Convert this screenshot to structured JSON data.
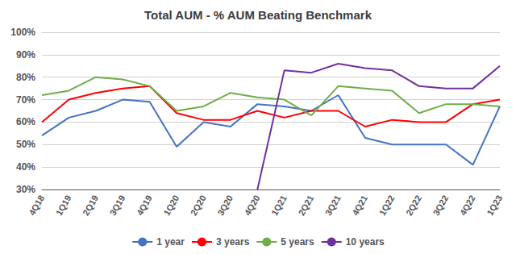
{
  "chart_data": {
    "type": "line",
    "title": "Total AUM - % AUM Beating Benchmark",
    "categories": [
      "4Q18",
      "1Q19",
      "2Q19",
      "3Q19",
      "4Q19",
      "1Q20",
      "2Q20",
      "3Q20",
      "4Q20",
      "1Q21",
      "2Q21",
      "3Q21",
      "4Q21",
      "1Q22",
      "2Q22",
      "3Q22",
      "4Q22",
      "1Q23"
    ],
    "series": [
      {
        "name": "1 year",
        "color": "#4472C4",
        "values": [
          54,
          62,
          65,
          70,
          69,
          49,
          60,
          58,
          68,
          67,
          65,
          72,
          53,
          50,
          50,
          50,
          41,
          67
        ]
      },
      {
        "name": "3 years",
        "color": "#FF0000",
        "values": [
          60,
          70,
          73,
          75,
          76,
          64,
          61,
          61,
          65,
          62,
          65,
          65,
          58,
          61,
          60,
          60,
          68,
          70
        ]
      },
      {
        "name": "5 years",
        "color": "#70AD47",
        "values": [
          72,
          74,
          80,
          79,
          76,
          65,
          67,
          73,
          71,
          70,
          63,
          76,
          75,
          74,
          64,
          68,
          68,
          67
        ]
      },
      {
        "name": "10 years",
        "color": "#7030A0",
        "values": [
          null,
          null,
          null,
          null,
          null,
          null,
          null,
          null,
          30,
          83,
          82,
          86,
          84,
          83,
          76,
          75,
          75,
          85
        ]
      }
    ],
    "ylim": [
      30,
      100
    ],
    "yticks": [
      {
        "value": 30,
        "label": "30%"
      },
      {
        "value": 40,
        "label": "40%"
      },
      {
        "value": 50,
        "label": "50%"
      },
      {
        "value": 60,
        "label": "60%"
      },
      {
        "value": 70,
        "label": "70%"
      },
      {
        "value": 80,
        "label": "80%"
      },
      {
        "value": 90,
        "label": "90%"
      },
      {
        "value": 100,
        "label": "100%"
      }
    ],
    "grid": true,
    "legend": "bottom"
  }
}
